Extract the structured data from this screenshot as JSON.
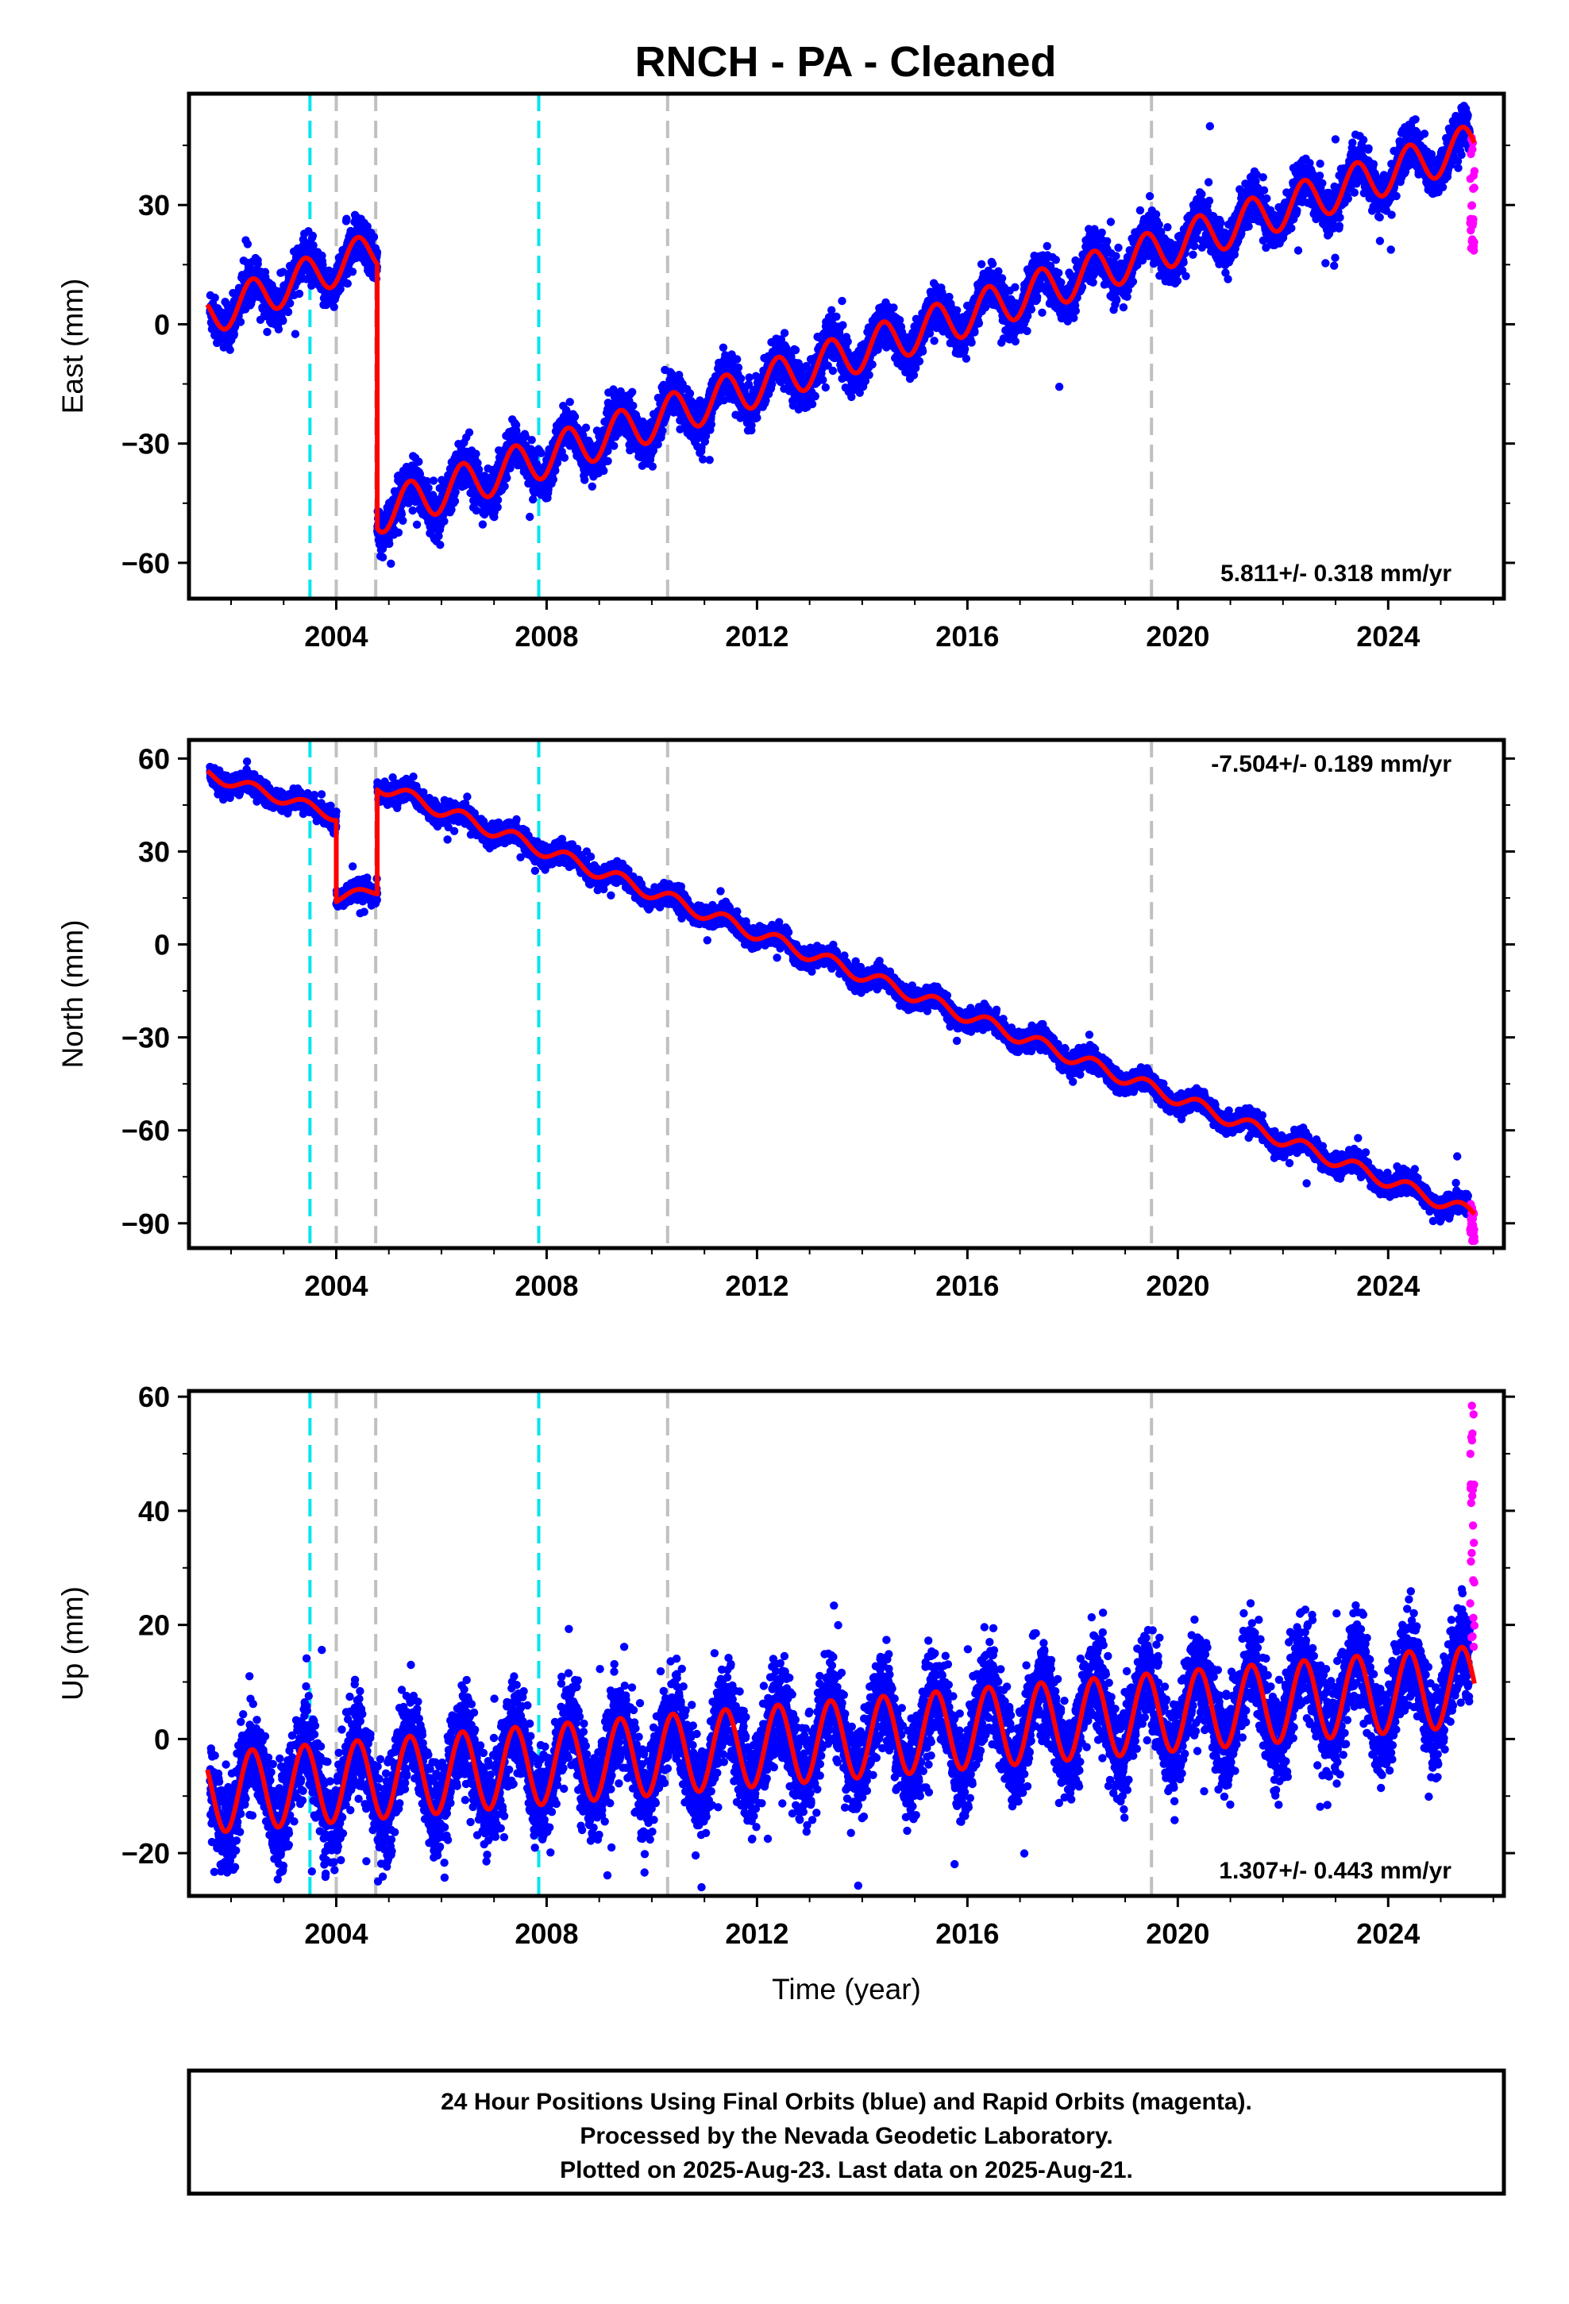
{
  "title": "RNCH  - PA - Cleaned",
  "colors": {
    "final": "#0000ff",
    "rapid": "#ff00ff",
    "model": "#ff0000",
    "event_cyan": "#00e5ee",
    "event_gray": "#c0c0c0"
  },
  "event_lines": [
    {
      "year": 2003.5,
      "color": "cyan"
    },
    {
      "year": 2004.0,
      "color": "gray"
    },
    {
      "year": 2004.75,
      "color": "gray"
    },
    {
      "year": 2007.85,
      "color": "cyan"
    },
    {
      "year": 2010.3,
      "color": "gray"
    },
    {
      "year": 2019.5,
      "color": "gray"
    }
  ],
  "chart_data": [
    {
      "type": "scatter",
      "id": "east",
      "ylabel": "East (mm)",
      "xlabel": "",
      "xlim": [
        2001.2,
        2026.2
      ],
      "ylim": [
        -69,
        58
      ],
      "yticks": [
        -60,
        -30,
        0,
        30
      ],
      "xticks": [
        2004,
        2008,
        2012,
        2016,
        2020,
        2024
      ],
      "rate_label": "5.811+/- 0.318 mm/yr",
      "rate_position": "bottom-right",
      "series": [
        {
          "role": "final",
          "color": "blue",
          "values": "daily positions 2001.6–2025.55"
        },
        {
          "role": "rapid",
          "color": "magenta",
          "values": "daily positions 2025.55–2025.64"
        },
        {
          "role": "model",
          "color": "red",
          "values": "trend + seasonal + offsets"
        }
      ],
      "model_segments": [
        {
          "start": 2001.55,
          "end": 2004.78,
          "y_start": 2,
          "rate": 5.2,
          "amplitude": 5.0
        },
        {
          "start": 2004.78,
          "end": 2025.64,
          "y_start": -47.5,
          "rate": 4.45,
          "amplitude": 5.3
        }
      ],
      "scatter_spread": 2.6,
      "rapid_range": [
        18,
        47
      ]
    },
    {
      "type": "scatter",
      "id": "north",
      "ylabel": "North (mm)",
      "xlabel": "",
      "xlim": [
        2001.2,
        2026.2
      ],
      "ylim": [
        -98,
        66
      ],
      "yticks": [
        -90,
        -60,
        -30,
        0,
        30,
        60
      ],
      "xticks": [
        2004,
        2008,
        2012,
        2016,
        2020,
        2024
      ],
      "rate_label": "-7.504+/- 0.189 mm/yr",
      "rate_position": "top-right",
      "series": [
        {
          "role": "final",
          "color": "blue",
          "values": "daily positions 2001.6–2025.55"
        },
        {
          "role": "rapid",
          "color": "magenta",
          "values": "daily positions 2025.55–2025.64"
        },
        {
          "role": "model",
          "color": "red",
          "values": "trend + seasonal + offsets"
        }
      ],
      "model_segments": [
        {
          "start": 2001.55,
          "end": 2004.0,
          "y_start": 55,
          "rate": -5.5,
          "amplitude": 1.8
        },
        {
          "start": 2004.0,
          "end": 2004.78,
          "y_start": 15,
          "rate": 3.0,
          "amplitude": 1.5
        },
        {
          "start": 2004.78,
          "end": 2025.64,
          "y_start": 51.5,
          "rate": -6.65,
          "amplitude": 2.2
        }
      ],
      "scatter_spread": 1.5,
      "rapid_range": [
        -96,
        -82
      ]
    },
    {
      "type": "scatter",
      "id": "up",
      "ylabel": "Up (mm)",
      "xlabel": "Time (year)",
      "xlim": [
        2001.2,
        2026.2
      ],
      "ylim": [
        -27.5,
        61
      ],
      "yticks": [
        -20,
        0,
        20,
        40,
        60
      ],
      "xticks": [
        2004,
        2008,
        2012,
        2016,
        2020,
        2024
      ],
      "rate_label": "1.307+/- 0.443 mm/yr",
      "rate_position": "bottom-right",
      "series": [
        {
          "role": "final",
          "color": "blue",
          "values": "daily positions 2001.6–2025.55"
        },
        {
          "role": "rapid",
          "color": "magenta",
          "values": "daily positions 2025.55–2025.64"
        },
        {
          "role": "model",
          "color": "red",
          "values": "trend + seasonal + offsets"
        }
      ],
      "model_segments": [
        {
          "start": 2001.55,
          "end": 2025.64,
          "y_start": -9.5,
          "rate": 0.78,
          "amplitude": 7.0
        }
      ],
      "scatter_spread": 4.0,
      "rapid_range": [
        16,
        60
      ]
    }
  ],
  "footer": {
    "line1": "24 Hour Positions Using Final Orbits (blue) and Rapid Orbits (magenta).",
    "line2": "Processed by the Nevada Geodetic Laboratory.",
    "line3": "Plotted on 2025-Aug-23. Last data on 2025-Aug-21."
  }
}
